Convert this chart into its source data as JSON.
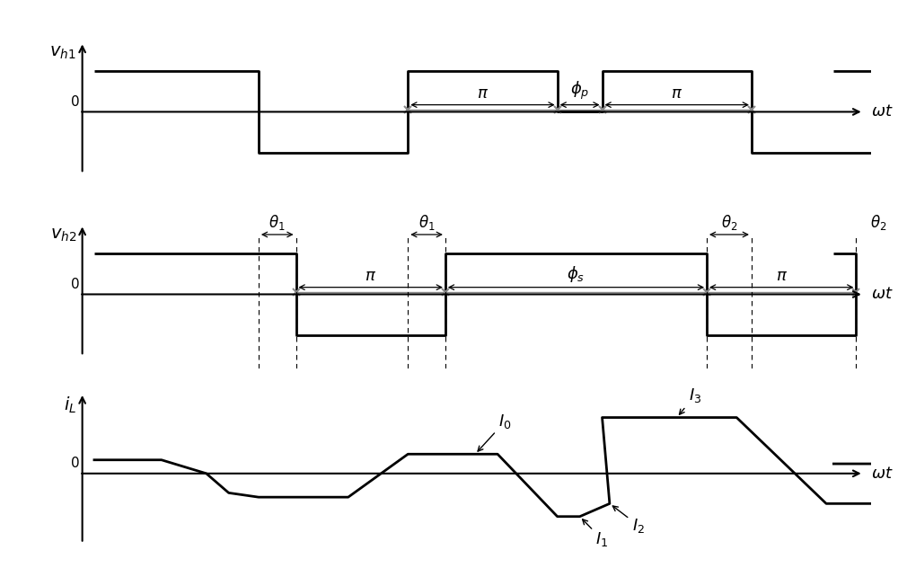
{
  "figsize": [
    10.0,
    6.32
  ],
  "dpi": 100,
  "bg_color": "#ffffff",
  "line_color": "#000000",
  "gray_color": "#888888",
  "vh1_label": "$v_{h1}$",
  "vh2_label": "$v_{h2}$",
  "iL_label": "$i_L$",
  "wt_label": "$\\omega t$",
  "zero_label": "0",
  "pi_label": "$\\pi$",
  "phi_p_label": "$\\phi_p$",
  "phi_s_label": "$\\phi_s$",
  "theta1_label": "$\\theta_1$",
  "theta2_label": "$\\theta_2$",
  "I0_label": "$I_0$",
  "I1_label": "$I_1$",
  "I2_label": "$I_2$",
  "I3_label": "$I_3$",
  "note_fontsize": 13,
  "label_fontsize": 14,
  "tick_fontsize": 11
}
